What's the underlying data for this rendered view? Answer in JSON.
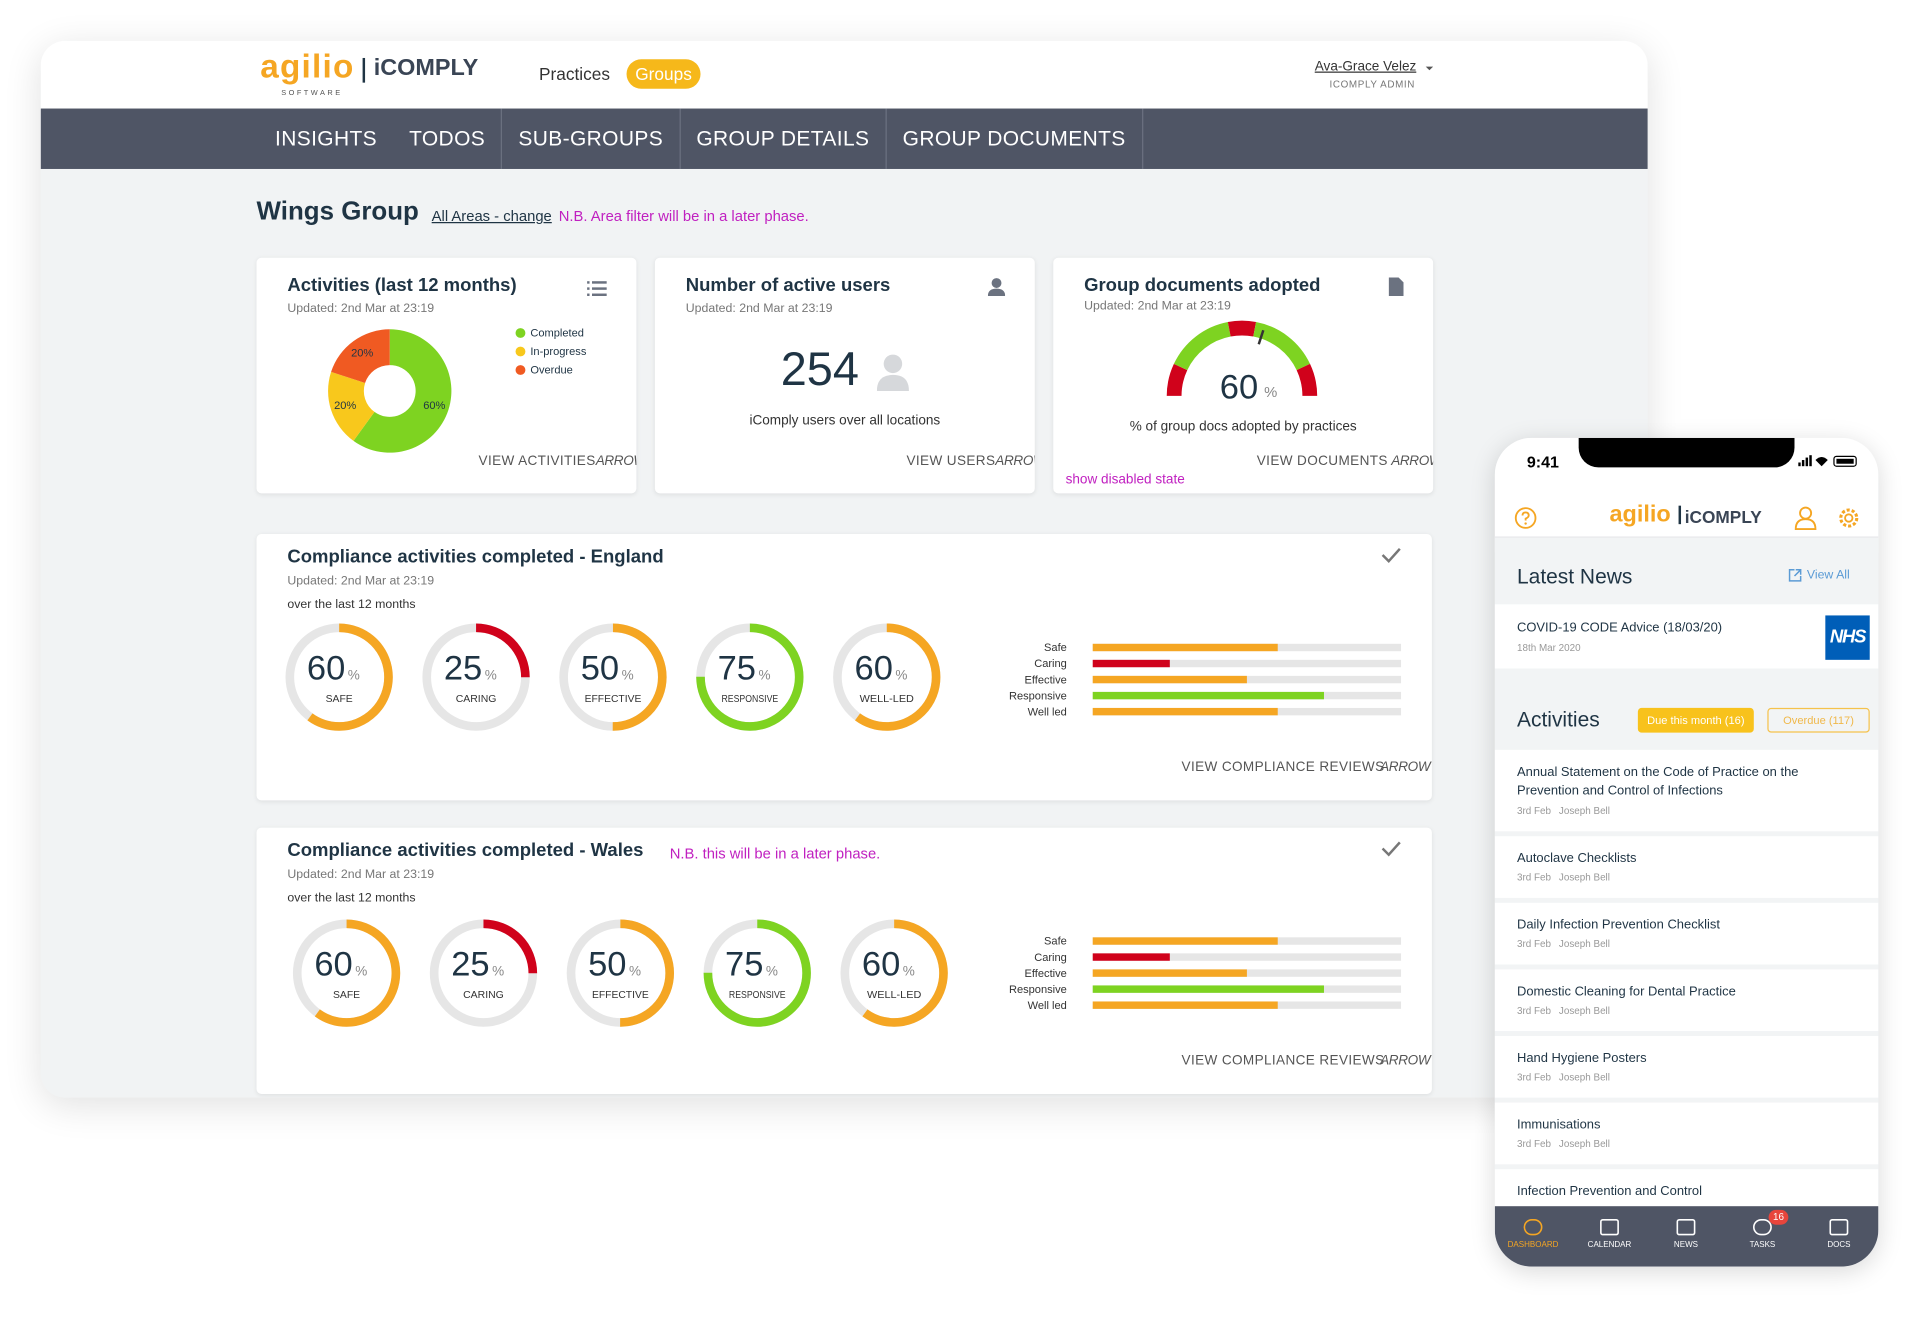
{
  "header": {
    "brand": "agilio",
    "brand_tagline": "SOFTWARE",
    "product": "iCOMPLY",
    "nav": [
      "Practices",
      "Groups"
    ],
    "user_name": "Ava-Grace Velez",
    "user_role": "ICOMPLY ADMIN"
  },
  "tabs": [
    "INSIGHTS",
    "TODOS",
    "SUB-GROUPS",
    "GROUP DETAILS",
    "GROUP DOCUMENTS"
  ],
  "page": {
    "title": "Wings Group",
    "filter_link": "All Areas - change",
    "filter_note": "N.B. Area filter will be in a later phase."
  },
  "activities_card": {
    "title": "Activities (last 12 months)",
    "updated": "Updated: 2nd Mar at 23:19",
    "chart": {
      "type": "pie",
      "categories": [
        "Completed",
        "In-progress",
        "Overdue"
      ],
      "values": [
        60,
        20,
        20
      ],
      "value_labels": [
        "60%",
        "20%",
        "20%"
      ],
      "colors": [
        "#7ed321",
        "#f8c81c",
        "#f05a22"
      ]
    },
    "link": "VIEW ACTIVITIES",
    "link_arrow": "ARROW"
  },
  "users_card": {
    "title": "Number of active users",
    "updated": "Updated: 2nd Mar at 23:19",
    "count": 254,
    "caption": "iComply users over all locations",
    "link": "VIEW USERS",
    "link_arrow": "ARROW"
  },
  "documents_card": {
    "title": "Group documents adopted",
    "updated": "Updated: 2nd Mar at 23:19",
    "value": 60,
    "unit": "%",
    "caption": "% of group docs adopted by practices",
    "link": "VIEW DOCUMENTS",
    "link_arrow": "ARROW",
    "note": "show disabled state"
  },
  "compliance": [
    {
      "title": "Compliance activities completed - England",
      "updated": "Updated: 2nd Mar at 23:19",
      "period": "over the last 12 months",
      "ring_labels": [
        "SAFE",
        "CARING",
        "EFFECTIVE",
        "RESPONSIVE",
        "WELL-LED"
      ],
      "bar_labels": [
        "Safe",
        "Caring",
        "Effective",
        "Responsive",
        "Well led"
      ],
      "values": [
        60,
        25,
        50,
        75,
        60
      ],
      "unit": "%",
      "colors": [
        "#f5a623",
        "#d0021b",
        "#f5a623",
        "#7ed321",
        "#f5a623"
      ],
      "link": "VIEW COMPLIANCE REVIEWS",
      "link_arrow": "ARROW"
    },
    {
      "title": "Compliance activities completed - Wales",
      "note": "N.B. this will be in a later phase.",
      "updated": "Updated: 2nd Mar at 23:19",
      "period": "over the last 12 months",
      "ring_labels": [
        "SAFE",
        "CARING",
        "EFFECTIVE",
        "RESPONSIVE",
        "WELL-LED"
      ],
      "bar_labels": [
        "Safe",
        "Caring",
        "Effective",
        "Responsive",
        "Well led"
      ],
      "values": [
        60,
        25,
        50,
        75,
        60
      ],
      "unit": "%",
      "colors": [
        "#f5a623",
        "#d0021b",
        "#f5a623",
        "#7ed321",
        "#f5a623"
      ],
      "link": "VIEW COMPLIANCE REVIEWS",
      "link_arrow": "ARROW"
    }
  ],
  "phone": {
    "time": "9:41",
    "brand": "agilio",
    "product": "iCOMPLY",
    "news_heading": "Latest News",
    "view_all": "View All",
    "news": {
      "title": "COVID-19 CODE Advice (18/03/20)",
      "date": "18th Mar 2020",
      "badge": "NHS"
    },
    "activities_heading": "Activities",
    "due_badge": "Due this month (16)",
    "overdue_badge": "Overdue (117)",
    "activities": [
      {
        "title": "Annual Statement on the Code of Practice on the Prevention and Control of Infections",
        "date": "3rd Feb",
        "assignee": "Joseph Bell"
      },
      {
        "title": "Autoclave Checklists",
        "date": "3rd Feb",
        "assignee": "Joseph Bell"
      },
      {
        "title": "Daily Infection Prevention Checklist",
        "date": "3rd Feb",
        "assignee": "Joseph Bell"
      },
      {
        "title": "Domestic Cleaning for Dental Practice",
        "date": "3rd Feb",
        "assignee": "Joseph Bell"
      },
      {
        "title": "Hand Hygiene Posters",
        "date": "3rd Feb",
        "assignee": "Joseph Bell"
      },
      {
        "title": "Immunisations",
        "date": "3rd Feb",
        "assignee": "Joseph Bell"
      },
      {
        "title": "Infection Prevention and Control"
      }
    ],
    "bottom_nav": [
      "DASHBOARD",
      "CALENDAR",
      "NEWS",
      "TASKS",
      "DOCS"
    ],
    "tasks_badge": "16"
  }
}
